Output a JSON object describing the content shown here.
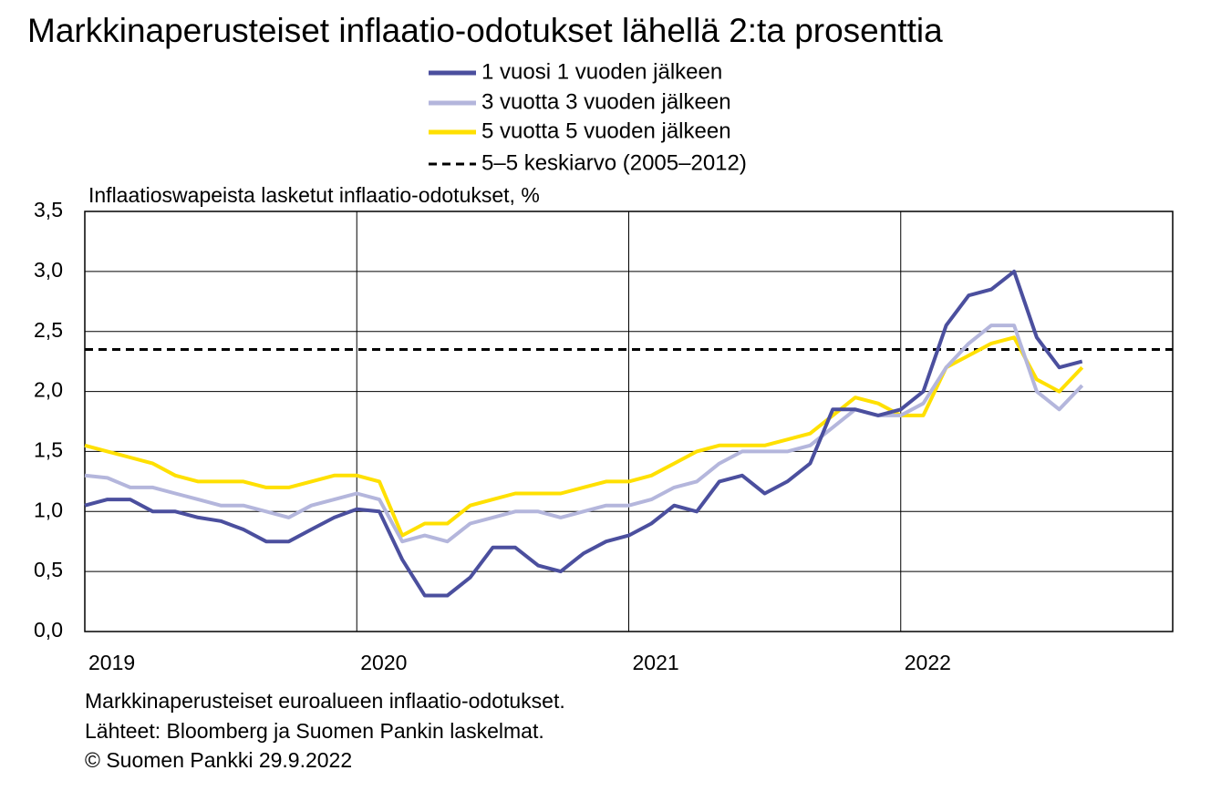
{
  "chart_data": {
    "type": "line",
    "title": "Markkinaperusteiset inflaatio-odotukset lähellä 2:ta prosenttia",
    "y_label": "Inflaatioswapeista lasketut inflaatio-odotukset, %",
    "x": [
      2019,
      2019.083,
      2019.167,
      2019.25,
      2019.333,
      2019.417,
      2019.5,
      2019.583,
      2019.667,
      2019.75,
      2019.833,
      2019.917,
      2020,
      2020.083,
      2020.167,
      2020.25,
      2020.333,
      2020.417,
      2020.5,
      2020.583,
      2020.667,
      2020.75,
      2020.833,
      2020.917,
      2021,
      2021.083,
      2021.167,
      2021.25,
      2021.333,
      2021.417,
      2021.5,
      2021.583,
      2021.667,
      2021.75,
      2021.833,
      2021.917,
      2022,
      2022.083,
      2022.167,
      2022.25,
      2022.333,
      2022.417,
      2022.5,
      2022.583,
      2022.667
    ],
    "xlim": [
      2019,
      2023
    ],
    "xticks": [
      2019,
      2020,
      2021,
      2022
    ],
    "ylim": [
      0,
      3.5
    ],
    "yticks": [
      {
        "value": 0,
        "label": "0,0"
      },
      {
        "value": 0.5,
        "label": "0,5"
      },
      {
        "value": 1,
        "label": "1,0"
      },
      {
        "value": 1.5,
        "label": "1,5"
      },
      {
        "value": 2,
        "label": "2,0"
      },
      {
        "value": 2.5,
        "label": "2,5"
      },
      {
        "value": 3,
        "label": "3,0"
      },
      {
        "value": 3.5,
        "label": "3,5"
      }
    ],
    "grid": true,
    "series": [
      {
        "name": "1 vuosi 1 vuoden jälkeen",
        "color": "#4b4f9e",
        "values": [
          1.05,
          1.1,
          1.1,
          1.0,
          1.0,
          0.95,
          0.92,
          0.85,
          0.75,
          0.75,
          0.85,
          0.95,
          1.02,
          1.0,
          0.6,
          0.3,
          0.3,
          0.45,
          0.7,
          0.7,
          0.55,
          0.5,
          0.65,
          0.75,
          0.8,
          0.9,
          1.05,
          1.0,
          1.25,
          1.3,
          1.15,
          1.25,
          1.4,
          1.85,
          1.85,
          1.8,
          1.85,
          2.0,
          2.55,
          2.8,
          2.85,
          3.0,
          2.45,
          2.2,
          2.25
        ]
      },
      {
        "name": "3 vuotta 3 vuoden jälkeen",
        "color": "#b4b6dc",
        "values": [
          1.3,
          1.28,
          1.2,
          1.2,
          1.15,
          1.1,
          1.05,
          1.05,
          1.0,
          0.95,
          1.05,
          1.1,
          1.15,
          1.1,
          0.75,
          0.8,
          0.75,
          0.9,
          0.95,
          1.0,
          1.0,
          0.95,
          1.0,
          1.05,
          1.05,
          1.1,
          1.2,
          1.25,
          1.4,
          1.5,
          1.5,
          1.5,
          1.55,
          1.7,
          1.85,
          1.8,
          1.8,
          1.9,
          2.2,
          2.4,
          2.55,
          2.55,
          2.0,
          1.85,
          2.05
        ]
      },
      {
        "name": "5 vuotta 5 vuoden jälkeen",
        "color": "#ffe000",
        "values": [
          1.55,
          1.5,
          1.45,
          1.4,
          1.3,
          1.25,
          1.25,
          1.25,
          1.2,
          1.2,
          1.25,
          1.3,
          1.3,
          1.25,
          0.8,
          0.9,
          0.9,
          1.05,
          1.1,
          1.15,
          1.15,
          1.15,
          1.2,
          1.25,
          1.25,
          1.3,
          1.4,
          1.5,
          1.55,
          1.55,
          1.55,
          1.6,
          1.65,
          1.8,
          1.95,
          1.9,
          1.8,
          1.8,
          2.2,
          2.3,
          2.4,
          2.45,
          2.1,
          2.0,
          2.2
        ]
      }
    ],
    "reference_line": {
      "name": "5–5 keskiarvo (2005–2012)",
      "value": 2.35,
      "color": "#000000"
    },
    "notes": [
      "Markkinaperusteiset euroalueen inflaatio-odotukset.",
      "Lähteet: Bloomberg ja Suomen Pankin laskelmat.",
      "© Suomen Pankki 29.9.2022"
    ]
  }
}
